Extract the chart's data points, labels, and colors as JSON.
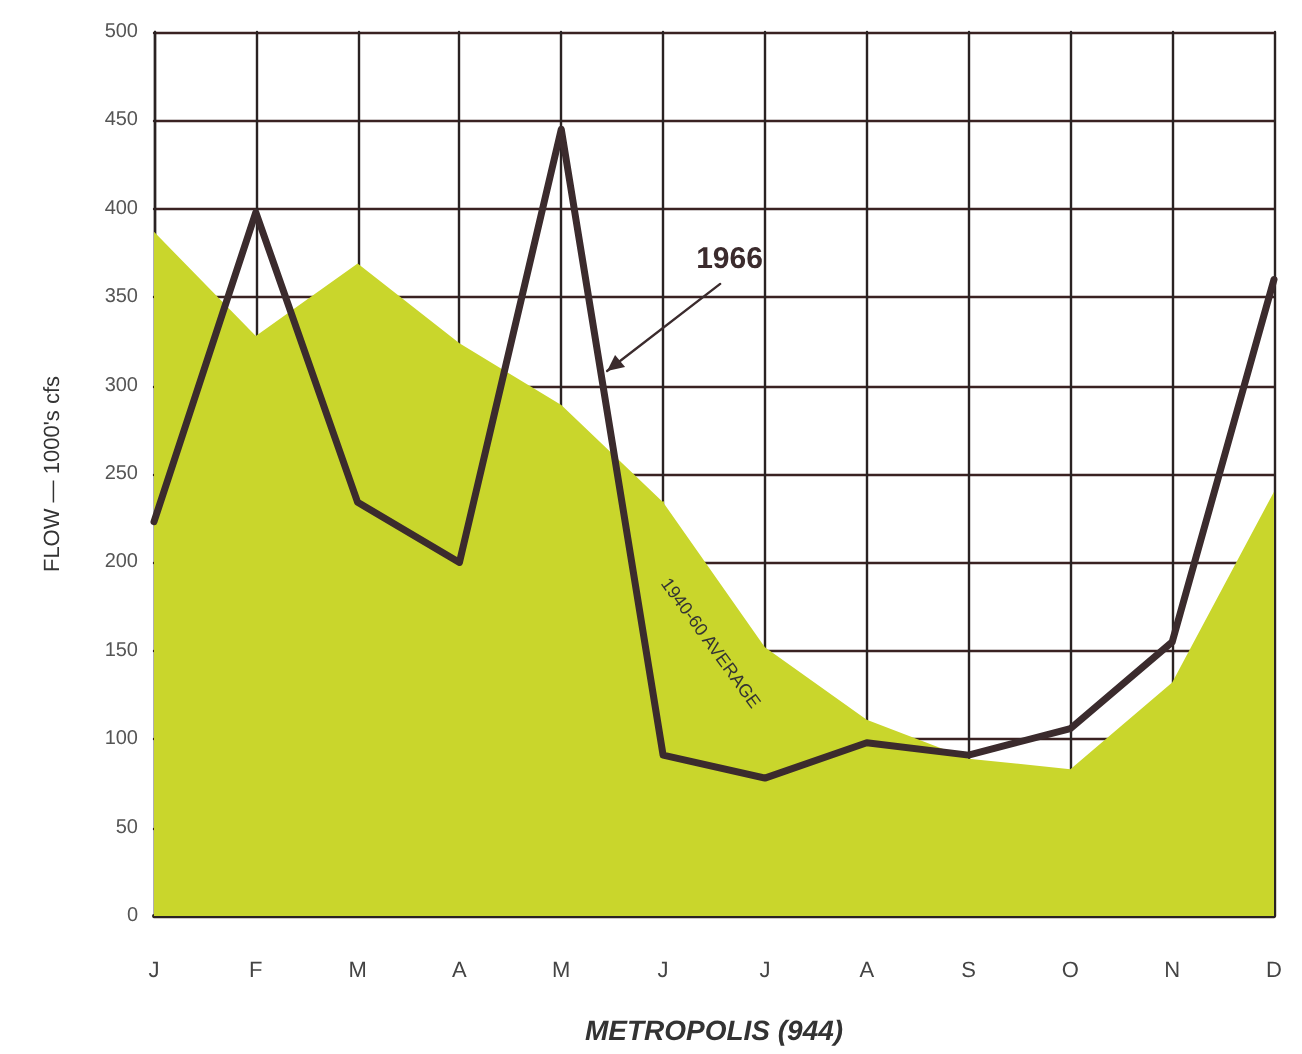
{
  "chart_data": {
    "type": "area",
    "xlabel": "METROPOLIS (944)",
    "ylabel": "FLOW — 1000's cfs",
    "categories": [
      "J",
      "F",
      "M",
      "A",
      "M",
      "J",
      "J",
      "A",
      "S",
      "O",
      "N",
      "D"
    ],
    "series": [
      {
        "name": "1940-60 AVERAGE",
        "type": "area",
        "color": "#c9d62c",
        "values": [
          387,
          328,
          369,
          324,
          289,
          234,
          152,
          111,
          89,
          83,
          132,
          240
        ]
      },
      {
        "name": "1966",
        "type": "line",
        "color": "#3b2b2d",
        "values": [
          223,
          398,
          234,
          200,
          445,
          91,
          78,
          98,
          91,
          106,
          155,
          360
        ]
      }
    ],
    "ylim": [
      0,
      500
    ],
    "yticks": [
      0,
      50,
      100,
      150,
      200,
      250,
      300,
      350,
      400,
      450,
      500
    ],
    "grid": true,
    "marker": "none",
    "line_style": "solid",
    "legend": false
  }
}
